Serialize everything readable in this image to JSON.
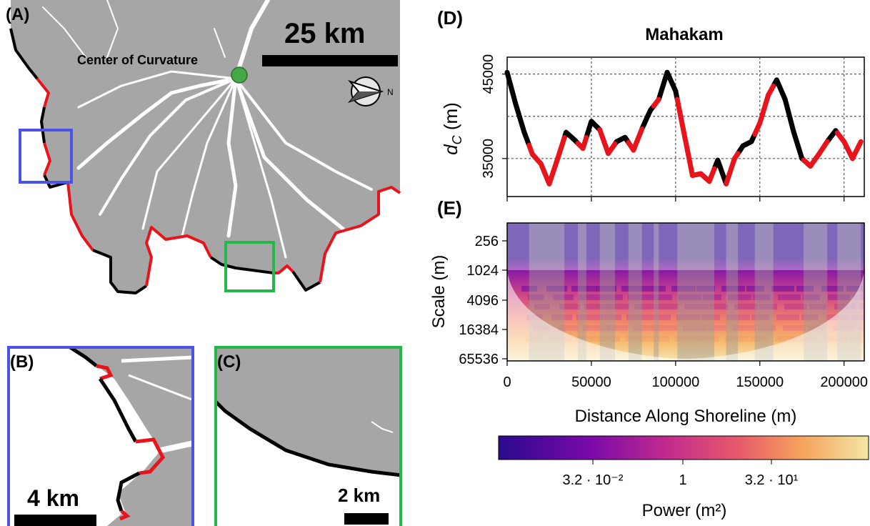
{
  "panels": {
    "a": {
      "label": "(A)",
      "scale_text": "25 km",
      "center_label": "Center of Curvature"
    },
    "b": {
      "label": "(B)",
      "scale_text": "4 km"
    },
    "c": {
      "label": "(C)",
      "scale_text": "2 km"
    },
    "d": {
      "label": "(D)"
    },
    "e": {
      "label": "(E)"
    }
  },
  "colors": {
    "land": "#a6a6a6",
    "shoreline": "#000000",
    "highlight_segment": "#e8141c",
    "inset_b_box": "#4a52e8",
    "inset_c_box": "#22b84a",
    "center_marker": "#44a844"
  },
  "icons": [
    "north-arrow-icon"
  ],
  "chart_data": [
    {
      "type": "line",
      "title": "Mahakam",
      "ylabel": "d_C (m)",
      "xlabel": "",
      "xlim": [
        0,
        212000
      ],
      "ylim": [
        30500,
        47000
      ],
      "yticks": [
        35000,
        45000
      ],
      "xticks": [
        50000,
        100000,
        150000,
        200000
      ],
      "grid": true,
      "series": [
        {
          "color": "#000000",
          "x": [
            0,
            5000,
            10000,
            15000,
            20000,
            25000,
            30000,
            35000,
            40000,
            45000,
            50000,
            55000,
            60000,
            65000,
            70000,
            75000,
            80000,
            85000,
            90000,
            95000,
            100000,
            105000,
            110000,
            115000,
            120000,
            125000,
            130000,
            135000,
            140000,
            145000,
            150000,
            155000,
            160000,
            165000,
            170000,
            175000,
            180000,
            185000,
            190000,
            195000,
            200000,
            205000,
            210000
          ],
          "y": [
            45200,
            41500,
            38200,
            35500,
            34400,
            32000,
            35000,
            38100,
            37200,
            36200,
            39400,
            38400,
            35600,
            37000,
            37500,
            36000,
            38500,
            40700,
            42000,
            45200,
            43000,
            38000,
            33000,
            33200,
            32300,
            34800,
            32000,
            35000,
            36500,
            37000,
            39200,
            42500,
            44300,
            42000,
            38200,
            35000,
            34100,
            35500,
            37000,
            38300,
            37000,
            35000,
            37000
          ]
        }
      ],
      "highlight_color": "#e8141c",
      "highlight_ranges": [
        [
          13000,
          34000
        ],
        [
          42000,
          47000
        ],
        [
          55000,
          64000
        ],
        [
          72000,
          80000
        ],
        [
          87000,
          90000
        ],
        [
          101000,
          123000
        ],
        [
          130000,
          137000
        ],
        [
          147000,
          158000
        ],
        [
          176000,
          190000
        ],
        [
          196000,
          210000
        ]
      ]
    },
    {
      "type": "heatmap",
      "ylabel": "Scale (m)",
      "xlabel": "Distance Along Shoreline (m)",
      "xlim": [
        0,
        212000
      ],
      "xtick_labels": [
        "0",
        "50000",
        "100000",
        "150000",
        "200000"
      ],
      "ytick_labels": [
        "256",
        "1024",
        "4096",
        "16384",
        "65536"
      ],
      "yscale": "log2",
      "colorbar": {
        "label": "Power (m²)",
        "tick_labels": [
          "3.2 · 10⁻²",
          "1",
          "3.2 · 10¹"
        ],
        "colormap": "plasma"
      }
    }
  ]
}
